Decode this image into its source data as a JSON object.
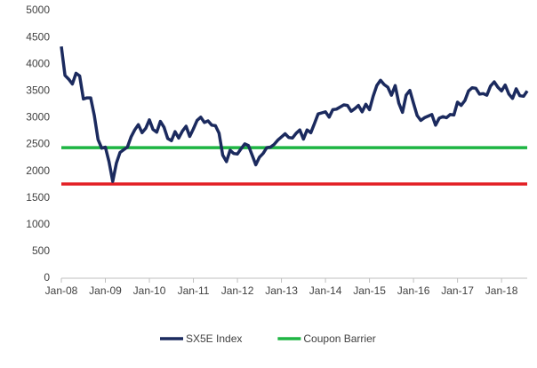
{
  "chart_data": {
    "type": "line",
    "x": [
      "2008-01",
      "2008-02",
      "2008-03",
      "2008-04",
      "2008-05",
      "2008-06",
      "2008-07",
      "2008-08",
      "2008-09",
      "2008-10",
      "2008-11",
      "2008-12",
      "2009-01",
      "2009-02",
      "2009-03",
      "2009-04",
      "2009-05",
      "2009-06",
      "2009-07",
      "2009-08",
      "2009-09",
      "2009-10",
      "2009-11",
      "2009-12",
      "2010-01",
      "2010-02",
      "2010-03",
      "2010-04",
      "2010-05",
      "2010-06",
      "2010-07",
      "2010-08",
      "2010-09",
      "2010-10",
      "2010-11",
      "2010-12",
      "2011-01",
      "2011-02",
      "2011-03",
      "2011-04",
      "2011-05",
      "2011-06",
      "2011-07",
      "2011-08",
      "2011-09",
      "2011-10",
      "2011-11",
      "2011-12",
      "2012-01",
      "2012-02",
      "2012-03",
      "2012-04",
      "2012-05",
      "2012-06",
      "2012-07",
      "2012-08",
      "2012-09",
      "2012-10",
      "2012-11",
      "2012-12",
      "2013-01",
      "2013-02",
      "2013-03",
      "2013-04",
      "2013-05",
      "2013-06",
      "2013-07",
      "2013-08",
      "2013-09",
      "2013-10",
      "2013-11",
      "2013-12",
      "2014-01",
      "2014-02",
      "2014-03",
      "2014-04",
      "2014-05",
      "2014-06",
      "2014-07",
      "2014-08",
      "2014-09",
      "2014-10",
      "2014-11",
      "2014-12",
      "2015-01",
      "2015-02",
      "2015-03",
      "2015-04",
      "2015-05",
      "2015-06",
      "2015-07",
      "2015-08",
      "2015-09",
      "2015-10",
      "2015-11",
      "2015-12",
      "2016-01",
      "2016-02",
      "2016-03",
      "2016-04",
      "2016-05",
      "2016-06",
      "2016-07",
      "2016-08",
      "2016-09",
      "2016-10",
      "2016-11",
      "2016-12",
      "2017-01",
      "2017-02",
      "2017-03",
      "2017-04",
      "2017-05",
      "2017-06",
      "2017-07",
      "2017-08",
      "2017-09",
      "2017-10",
      "2017-11",
      "2017-12",
      "2018-01",
      "2018-02",
      "2018-03",
      "2018-04",
      "2018-05",
      "2018-06",
      "2018-07",
      "2018-08"
    ],
    "series": [
      {
        "name": "SX5E Index",
        "color": "#1b2a5e",
        "values": [
          4330,
          3790,
          3720,
          3630,
          3830,
          3780,
          3350,
          3370,
          3370,
          3040,
          2590,
          2430,
          2450,
          2180,
          1810,
          2150,
          2350,
          2400,
          2450,
          2640,
          2770,
          2870,
          2720,
          2800,
          2960,
          2780,
          2730,
          2930,
          2820,
          2610,
          2570,
          2740,
          2620,
          2750,
          2840,
          2650,
          2790,
          2950,
          3010,
          2910,
          2940,
          2860,
          2850,
          2710,
          2300,
          2180,
          2390,
          2330,
          2320,
          2420,
          2510,
          2480,
          2300,
          2120,
          2260,
          2330,
          2440,
          2450,
          2500,
          2580,
          2640,
          2700,
          2630,
          2620,
          2710,
          2770,
          2600,
          2770,
          2720,
          2890,
          3070,
          3090,
          3110,
          3010,
          3150,
          3160,
          3200,
          3240,
          3230,
          3120,
          3170,
          3230,
          3110,
          3250,
          3150,
          3400,
          3600,
          3700,
          3620,
          3570,
          3420,
          3600,
          3270,
          3100,
          3420,
          3510,
          3270,
          3040,
          2950,
          3000,
          3030,
          3060,
          2860,
          2990,
          3020,
          3000,
          3060,
          3050,
          3290,
          3230,
          3320,
          3500,
          3560,
          3550,
          3440,
          3450,
          3420,
          3590,
          3670,
          3570,
          3500,
          3610,
          3440,
          3360,
          3540,
          3410,
          3400,
          3500
        ]
      },
      {
        "name": "Coupon Barrier",
        "color": "#1eb543",
        "x": [
          "2008-01",
          "2018-08"
        ],
        "values": [
          2440,
          2440
        ]
      },
      {
        "color": "#e31e24",
        "x": [
          "2008-01",
          "2018-08"
        ],
        "values": [
          1760,
          1760
        ]
      }
    ],
    "xlim": [
      "2008-01",
      "2018-08"
    ],
    "xticks": [
      {
        "value": "2008-01",
        "label": "Jan-08"
      },
      {
        "value": "2009-01",
        "label": "Jan-09"
      },
      {
        "value": "2010-01",
        "label": "Jan-10"
      },
      {
        "value": "2011-01",
        "label": "Jan-11"
      },
      {
        "value": "2012-01",
        "label": "Jan-12"
      },
      {
        "value": "2013-01",
        "label": "Jan-13"
      },
      {
        "value": "2014-01",
        "label": "Jan-14"
      },
      {
        "value": "2015-01",
        "label": "Jan-15"
      },
      {
        "value": "2016-01",
        "label": "Jan-16"
      },
      {
        "value": "2017-01",
        "label": "Jan-17"
      },
      {
        "value": "2018-01",
        "label": "Jan-18"
      }
    ],
    "ylim": [
      0,
      5000
    ],
    "yticks": [
      0,
      500,
      1000,
      1500,
      2000,
      2500,
      3000,
      3500,
      4000,
      4500,
      5000
    ],
    "grid": false,
    "legend": "bottom"
  }
}
